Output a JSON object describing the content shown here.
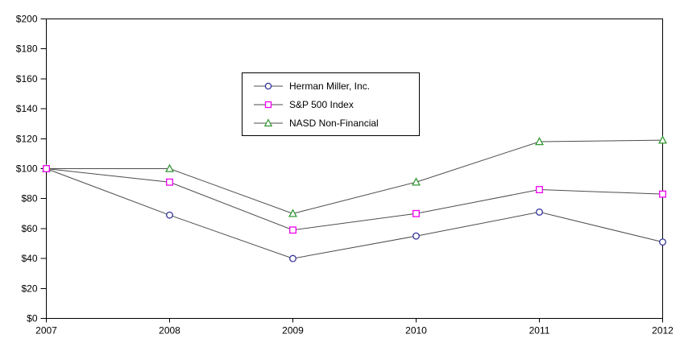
{
  "chart_data": {
    "type": "line",
    "x": [
      "2007",
      "2008",
      "2009",
      "2010",
      "2011",
      "2012"
    ],
    "series": [
      {
        "name": "Herman Miller, Inc.",
        "marker": "circle",
        "color": "#333399",
        "values": [
          100,
          69,
          40,
          55,
          71,
          51
        ]
      },
      {
        "name": "S&P 500 Index",
        "marker": "square",
        "color": "#F000F0",
        "values": [
          100,
          91,
          59,
          70,
          86,
          83
        ]
      },
      {
        "name": "NASD Non-Financial",
        "marker": "triangle",
        "color": "#339933",
        "values": [
          100,
          100,
          70,
          91,
          118,
          119
        ]
      }
    ],
    "y_ticks": [
      {
        "value": 0,
        "label": "$0"
      },
      {
        "value": 20,
        "label": "$20"
      },
      {
        "value": 40,
        "label": "$40"
      },
      {
        "value": 60,
        "label": "$60"
      },
      {
        "value": 80,
        "label": "$80"
      },
      {
        "value": 100,
        "label": "$100"
      },
      {
        "value": 120,
        "label": "$120"
      },
      {
        "value": 140,
        "label": "$140"
      },
      {
        "value": 160,
        "label": "$160"
      },
      {
        "value": 180,
        "label": "$180"
      },
      {
        "value": 200,
        "label": "$200"
      }
    ],
    "ylim": [
      0,
      200
    ],
    "grid": false,
    "legend_position": "inside-top-center",
    "line_color": "#4d4d4d",
    "axis_color": "#000000",
    "marker_fill": "#ffffff",
    "text_color": "#000000"
  }
}
